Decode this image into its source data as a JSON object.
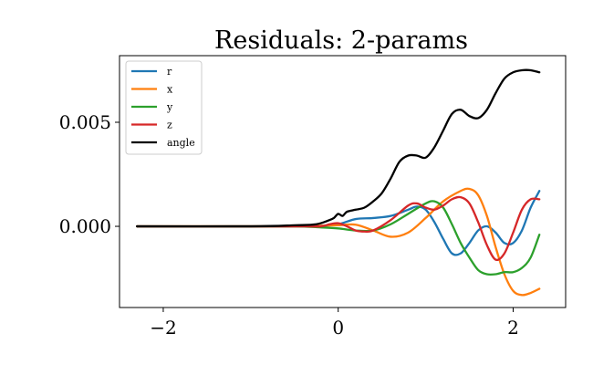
{
  "chart_data": {
    "type": "line",
    "title": "Residuals: 2-params",
    "xlabel": "",
    "ylabel": "",
    "xlim": [
      -2.5,
      2.6
    ],
    "ylim": [
      -0.0039,
      0.0082
    ],
    "grid": false,
    "legend_placement": "top-left",
    "x_ticks": [
      {
        "value": -2,
        "label": "−2"
      },
      {
        "value": 0,
        "label": "0"
      },
      {
        "value": 2,
        "label": "2"
      }
    ],
    "y_ticks": [
      {
        "value": 0.0,
        "label": "0.000"
      },
      {
        "value": 0.005,
        "label": "0.005"
      }
    ],
    "series": [
      {
        "name": "r",
        "color": "#1f77b4",
        "x": [
          -2.3,
          -1.0,
          -0.5,
          -0.2,
          0.0,
          0.2,
          0.4,
          0.6,
          0.8,
          0.9,
          1.0,
          1.1,
          1.2,
          1.3,
          1.4,
          1.5,
          1.6,
          1.7,
          1.8,
          1.9,
          2.0,
          2.1,
          2.2,
          2.3
        ],
        "y": [
          0.0,
          0.0,
          0.0,
          2e-05,
          0.0001,
          0.00035,
          0.0004,
          0.0005,
          0.0008,
          0.00095,
          0.0008,
          0.0002,
          -0.0006,
          -0.0013,
          -0.0013,
          -0.0008,
          -0.0002,
          0.0,
          -0.0003,
          -0.0008,
          -0.0008,
          -0.0002,
          0.0009,
          0.0017
        ]
      },
      {
        "name": "x",
        "color": "#ff7f0e",
        "x": [
          -2.3,
          -1.0,
          -0.4,
          -0.2,
          0.0,
          0.2,
          0.4,
          0.6,
          0.8,
          1.0,
          1.2,
          1.4,
          1.5,
          1.6,
          1.7,
          1.8,
          1.9,
          2.0,
          2.1,
          2.2,
          2.3
        ],
        "y": [
          0.0,
          0.0,
          0.0,
          3e-05,
          5e-05,
          8e-05,
          -0.0002,
          -0.0005,
          -0.0003,
          0.0004,
          0.0012,
          0.0017,
          0.0018,
          0.0015,
          0.0005,
          -0.001,
          -0.0023,
          -0.0031,
          -0.0033,
          -0.0032,
          -0.003
        ]
      },
      {
        "name": "y",
        "color": "#2ca02c",
        "x": [
          -2.3,
          -1.0,
          -0.5,
          -0.2,
          0.0,
          0.2,
          0.4,
          0.6,
          0.8,
          1.0,
          1.1,
          1.2,
          1.3,
          1.4,
          1.5,
          1.6,
          1.7,
          1.8,
          1.9,
          2.0,
          2.1,
          2.2,
          2.3
        ],
        "y": [
          0.0,
          0.0,
          0.0,
          -5e-05,
          -0.0001,
          -0.0002,
          -0.0002,
          0.0001,
          0.0006,
          0.0011,
          0.0012,
          0.0009,
          0.0001,
          -0.0008,
          -0.0015,
          -0.0021,
          -0.0023,
          -0.0023,
          -0.0022,
          -0.0022,
          -0.002,
          -0.0015,
          -0.0004
        ]
      },
      {
        "name": "z",
        "color": "#d62728",
        "x": [
          -2.3,
          -1.0,
          -0.5,
          -0.2,
          -0.1,
          0.0,
          0.1,
          0.2,
          0.3,
          0.4,
          0.6,
          0.8,
          0.9,
          1.0,
          1.1,
          1.2,
          1.3,
          1.4,
          1.5,
          1.6,
          1.7,
          1.8,
          1.9,
          2.0,
          2.1,
          2.2,
          2.3
        ],
        "y": [
          0.0,
          0.0,
          0.0,
          0.0,
          0.0001,
          0.00015,
          0.0,
          -0.0002,
          -0.00025,
          -0.0002,
          0.0003,
          0.001,
          0.0011,
          0.0009,
          0.0008,
          0.001,
          0.0013,
          0.0014,
          0.0011,
          0.0002,
          -0.0009,
          -0.0016,
          -0.0013,
          -0.0003,
          0.0008,
          0.0013,
          0.0013
        ]
      },
      {
        "name": "angle",
        "color": "#000000",
        "x": [
          -2.3,
          -1.0,
          -0.5,
          -0.25,
          -0.1,
          -0.05,
          0.0,
          0.05,
          0.1,
          0.2,
          0.3,
          0.4,
          0.5,
          0.6,
          0.7,
          0.8,
          0.9,
          1.0,
          1.1,
          1.2,
          1.3,
          1.4,
          1.5,
          1.6,
          1.7,
          1.8,
          1.9,
          2.0,
          2.1,
          2.2,
          2.3
        ],
        "y": [
          0.0,
          0.0,
          5e-05,
          0.0001,
          0.0003,
          0.0004,
          0.0006,
          0.0005,
          0.0007,
          0.0008,
          0.0009,
          0.0012,
          0.0016,
          0.0023,
          0.0031,
          0.0034,
          0.0034,
          0.0033,
          0.0038,
          0.0046,
          0.0054,
          0.0056,
          0.0053,
          0.0052,
          0.0056,
          0.0064,
          0.0071,
          0.0074,
          0.0075,
          0.0075,
          0.0074
        ]
      }
    ]
  }
}
